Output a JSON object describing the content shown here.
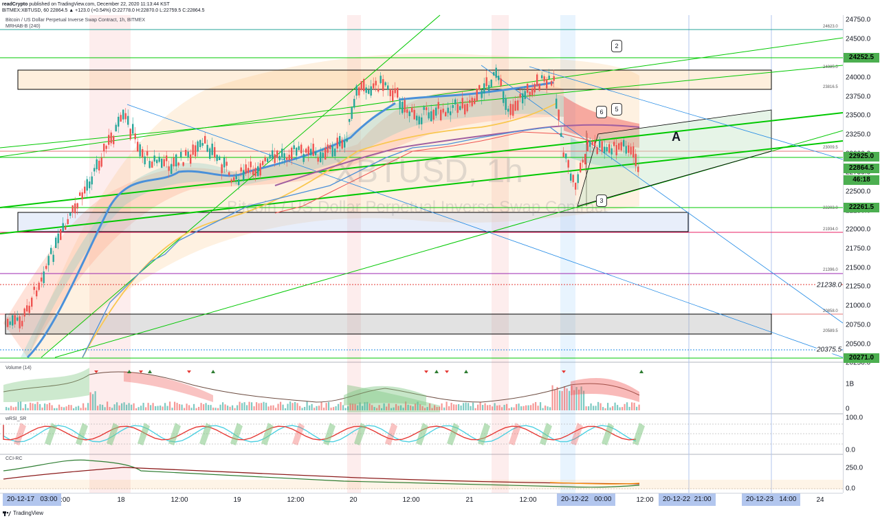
{
  "header": {
    "line1_author": "readCrypto",
    "line1_rest": " published on TradingView.com, December 22, 2020 11:13:44 KST",
    "line2": "BITMEX:XBTUSD, 60  22864.5  ▲ +123.0 (+0.54%)  O:22778.0  H:22870.0  L:22759.5  C:22864.5"
  },
  "legend": {
    "title": "Bitcoin / US Dollar Perpetual Inverse Swap Contract, 1h, BITMEX",
    "indicator": "MRHAB-B (240)"
  },
  "watermark": {
    "symbol": "XBTUSD, 1h",
    "name": "Bitcoin / US Dollar Perpetual Inverse Swap Contract"
  },
  "annotations": {
    "label_a": "A",
    "callouts": [
      "2",
      "5",
      "6",
      "3"
    ]
  },
  "price_axis": {
    "ticks": [
      "24750.0",
      "24500.0",
      "24000.0",
      "23750.0",
      "23500.0",
      "23250.0",
      "23000.0",
      "22750.0",
      "22500.0",
      "22250.0",
      "22000.0",
      "21750.0",
      "21500.0",
      "21250.0",
      "21000.0",
      "20750.0",
      "20500.0",
      "20250.0"
    ],
    "badges": [
      {
        "text": "24252.5",
        "bg": "#4caf50",
        "fg": "#000000"
      },
      {
        "text": "22925.0",
        "bg": "#4caf50",
        "fg": "#000000"
      },
      {
        "text": "22864.5",
        "bg": "#4caf50",
        "fg": "#000000"
      },
      {
        "text": "46:18",
        "bg": "#4caf50",
        "fg": "#000000"
      },
      {
        "text": "22261.5",
        "bg": "#4caf50",
        "fg": "#000000"
      },
      {
        "text": "20271.0",
        "bg": "#4caf50",
        "fg": "#000000"
      }
    ],
    "dotted_labels": [
      "21238.0",
      "20375.5"
    ]
  },
  "levels": [
    "24623.0",
    "24085.0",
    "23816.5",
    "23009.5",
    "22203.0",
    "21934.0",
    "21396.0",
    "20858.0",
    "20589.5"
  ],
  "volume_pane": {
    "title": "Volume (14)",
    "ticks": [
      "1B",
      "0"
    ]
  },
  "rsi_pane": {
    "title": "wRSI_SR",
    "ticks": [
      "100.0",
      "0.0"
    ]
  },
  "cci_pane": {
    "title": "CCI-RC",
    "ticks": [
      "250.0",
      "0.0"
    ]
  },
  "time_axis": {
    "ticks": [
      ":00",
      "18",
      "12:00",
      "19",
      "12:00",
      "20",
      "12:00",
      "21",
      "12:00",
      "12:00",
      "24"
    ],
    "badges": [
      "20-12-17   03:00",
      "20-12-22   00:00",
      "20-12-22  21:00",
      "20-12-23   14:00"
    ]
  },
  "footer": {
    "brand": "TradingView"
  },
  "colors": {
    "up": "#26a69a",
    "down": "#ef5350",
    "green_line": "#00c800",
    "box_fill": "#fde9cf",
    "badge_green": "#4caf50"
  }
}
